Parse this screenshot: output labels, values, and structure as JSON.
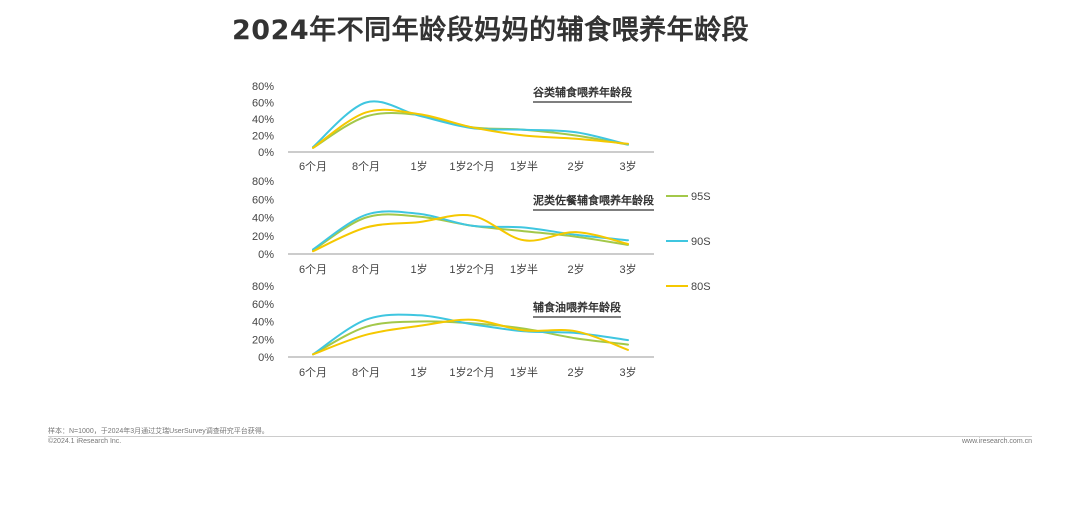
{
  "page": {
    "title": "2024年不同年龄段妈妈的辅食喂养年龄段",
    "footnote": "样本：N=1000，于2024年3月通过艾瑞UserSurvey调查研究平台获得。",
    "copyright": "©2024.1 iResearch Inc.",
    "website": "www.iresearch.com.cn"
  },
  "colors": {
    "95S": "#a3c84a",
    "90S": "#3fc6e0",
    "80S": "#f5c800"
  },
  "legend": [
    {
      "name": "95S"
    },
    {
      "name": "90S"
    },
    {
      "name": "80S"
    }
  ],
  "chart_data": [
    {
      "type": "line",
      "title": "谷类辅食喂养年龄段",
      "categories": [
        "6个月",
        "8个月",
        "1岁",
        "1岁2个月",
        "1岁半",
        "2岁",
        "3岁"
      ],
      "yticks": [
        "80%",
        "60%",
        "40%",
        "20%",
        "0%"
      ],
      "ylim": [
        0,
        80
      ],
      "series": [
        {
          "name": "95S",
          "values": [
            5,
            43,
            45,
            30,
            27,
            20,
            9
          ]
        },
        {
          "name": "90S",
          "values": [
            6,
            60,
            44,
            29,
            27,
            24,
            9
          ]
        },
        {
          "name": "80S",
          "values": [
            5,
            48,
            46,
            30,
            20,
            16,
            10
          ]
        }
      ]
    },
    {
      "type": "line",
      "title": "泥类佐餐辅食喂养年龄段",
      "categories": [
        "6个月",
        "8个月",
        "1岁",
        "1岁2个月",
        "1岁半",
        "2岁",
        "3岁"
      ],
      "yticks": [
        "80%",
        "60%",
        "40%",
        "20%",
        "0%"
      ],
      "ylim": [
        0,
        80
      ],
      "series": [
        {
          "name": "95S",
          "values": [
            4,
            40,
            41,
            31,
            25,
            19,
            10
          ]
        },
        {
          "name": "90S",
          "values": [
            5,
            43,
            44,
            31,
            29,
            21,
            15
          ]
        },
        {
          "name": "80S",
          "values": [
            3,
            29,
            35,
            42,
            15,
            24,
            11
          ]
        }
      ]
    },
    {
      "type": "line",
      "title": "辅食油喂养年龄段",
      "categories": [
        "6个月",
        "8个月",
        "1岁",
        "1岁2个月",
        "1岁半",
        "2岁",
        "3岁"
      ],
      "yticks": [
        "80%",
        "60%",
        "40%",
        "20%",
        "0%"
      ],
      "ylim": [
        0,
        80
      ],
      "series": [
        {
          "name": "95S",
          "values": [
            3,
            34,
            40,
            38,
            32,
            21,
            14
          ]
        },
        {
          "name": "90S",
          "values": [
            3,
            42,
            47,
            37,
            29,
            27,
            19
          ]
        },
        {
          "name": "80S",
          "values": [
            3,
            25,
            35,
            42,
            30,
            29,
            8
          ]
        }
      ]
    }
  ]
}
